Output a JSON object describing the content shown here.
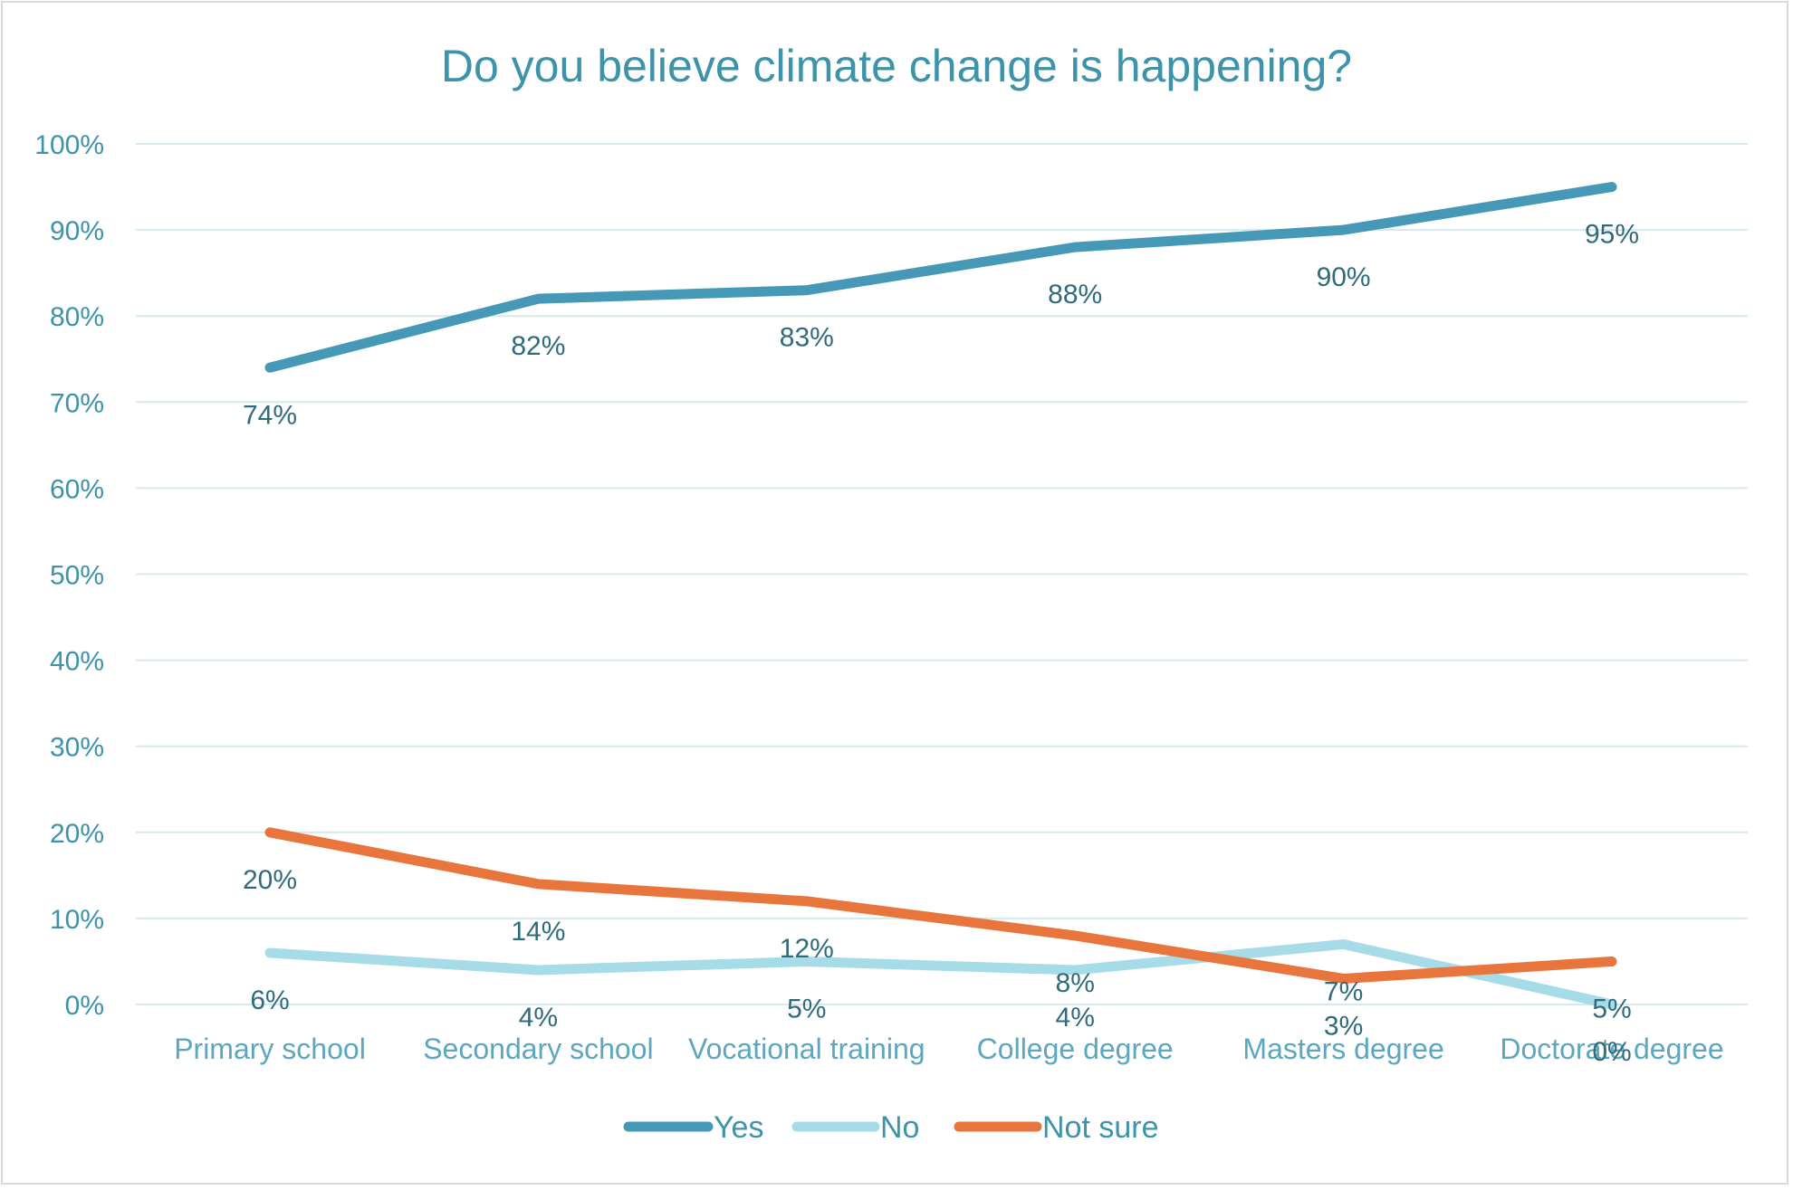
{
  "chart_data": {
    "type": "line",
    "title": "Do you believe climate change is happening?",
    "categories": [
      "Primary school",
      "Secondary school",
      "Vocational training",
      "College degree",
      "Masters degree",
      "Doctorate degree"
    ],
    "y_ticks": [
      "0%",
      "10%",
      "20%",
      "30%",
      "40%",
      "50%",
      "60%",
      "70%",
      "80%",
      "90%",
      "100%"
    ],
    "ylim": [
      0,
      100
    ],
    "grid": true,
    "legend_position": "bottom",
    "series": [
      {
        "name": "Yes",
        "color": "#4599b6",
        "values": [
          74,
          82,
          83,
          88,
          90,
          95
        ],
        "labels": [
          "74%",
          "82%",
          "83%",
          "88%",
          "90%",
          "95%"
        ]
      },
      {
        "name": "No",
        "color": "#a6dce8",
        "values": [
          6,
          4,
          5,
          4,
          7,
          0
        ],
        "labels": [
          "6%",
          "4%",
          "5%",
          "4%",
          "7%",
          "0%"
        ]
      },
      {
        "name": "Not sure",
        "color": "#e8753c",
        "values": [
          20,
          14,
          12,
          8,
          3,
          5
        ],
        "labels": [
          "20%",
          "14%",
          "12%",
          "8%",
          "3%",
          "5%"
        ]
      }
    ]
  }
}
